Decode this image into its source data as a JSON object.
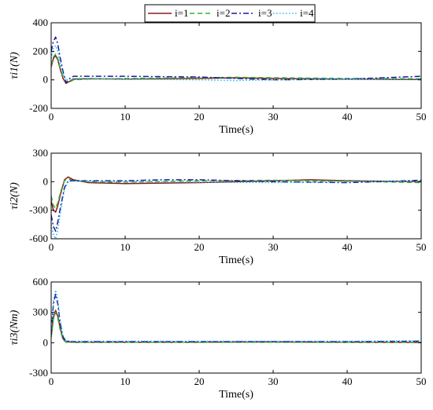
{
  "chart_data": [
    {
      "type": "line",
      "ylabel": "τi1(N)",
      "xlabel": "Time(s)",
      "xlim": [
        0,
        50
      ],
      "ylim": [
        -200,
        400
      ],
      "xticks": [
        0,
        10,
        20,
        30,
        40,
        50
      ],
      "yticks": [
        -200,
        0,
        200,
        400
      ],
      "grid": false,
      "legend": {
        "placement": "top-center",
        "entries": [
          "i=1",
          "i=2",
          "i=3",
          "i=4"
        ]
      },
      "series": [
        {
          "name": "i=1",
          "color": "#8B1A1A",
          "dash": "solid",
          "points": [
            [
              0,
              90
            ],
            [
              0.3,
              150
            ],
            [
              0.6,
              170
            ],
            [
              0.9,
              140
            ],
            [
              1.2,
              80
            ],
            [
              1.6,
              10
            ],
            [
              2.0,
              -25
            ],
            [
              2.5,
              -10
            ],
            [
              3.0,
              5
            ],
            [
              5,
              8
            ],
            [
              10,
              5
            ],
            [
              20,
              10
            ],
            [
              25,
              15
            ],
            [
              30,
              10
            ],
            [
              40,
              5
            ],
            [
              50,
              2
            ]
          ]
        },
        {
          "name": "i=2",
          "color": "#2DB52D",
          "dash": "dashed",
          "points": [
            [
              0,
              100
            ],
            [
              0.3,
              160
            ],
            [
              0.6,
              180
            ],
            [
              0.9,
              150
            ],
            [
              1.2,
              90
            ],
            [
              1.6,
              20
            ],
            [
              2.0,
              -20
            ],
            [
              2.5,
              -15
            ],
            [
              3.0,
              0
            ],
            [
              5,
              5
            ],
            [
              10,
              10
            ],
            [
              20,
              15
            ],
            [
              25,
              18
            ],
            [
              30,
              15
            ],
            [
              40,
              10
            ],
            [
              50,
              8
            ]
          ]
        },
        {
          "name": "i=3",
          "color": "#1A1A9E",
          "dash": "dashdot",
          "points": [
            [
              0,
              200
            ],
            [
              0.3,
              270
            ],
            [
              0.6,
              300
            ],
            [
              0.9,
              250
            ],
            [
              1.2,
              160
            ],
            [
              1.6,
              60
            ],
            [
              2.0,
              -20
            ],
            [
              2.5,
              10
            ],
            [
              3.0,
              25
            ],
            [
              5,
              25
            ],
            [
              10,
              25
            ],
            [
              20,
              20
            ],
            [
              25,
              10
            ],
            [
              30,
              0
            ],
            [
              40,
              5
            ],
            [
              50,
              25
            ]
          ]
        },
        {
          "name": "i=4",
          "color": "#22B6E8",
          "dash": "dotted",
          "points": [
            [
              0,
              150
            ],
            [
              0.3,
              220
            ],
            [
              0.6,
              240
            ],
            [
              0.9,
              200
            ],
            [
              1.2,
              120
            ],
            [
              1.6,
              40
            ],
            [
              2.0,
              0
            ],
            [
              2.5,
              5
            ],
            [
              3.0,
              10
            ],
            [
              5,
              10
            ],
            [
              10,
              5
            ],
            [
              20,
              0
            ],
            [
              25,
              -5
            ],
            [
              30,
              0
            ],
            [
              40,
              5
            ],
            [
              50,
              5
            ]
          ]
        }
      ]
    },
    {
      "type": "line",
      "ylabel": "τi2(N)",
      "xlabel": "Time(s)",
      "xlim": [
        0,
        50
      ],
      "ylim": [
        -600,
        300
      ],
      "xticks": [
        0,
        10,
        20,
        30,
        40,
        50
      ],
      "yticks": [
        -600,
        -300,
        0,
        300
      ],
      "grid": false,
      "series": [
        {
          "name": "i=1",
          "color": "#8B1A1A",
          "dash": "solid",
          "points": [
            [
              0,
              -200
            ],
            [
              0.3,
              -300
            ],
            [
              0.6,
              -320
            ],
            [
              0.9,
              -250
            ],
            [
              1.3,
              -120
            ],
            [
              1.8,
              20
            ],
            [
              2.3,
              50
            ],
            [
              3.0,
              20
            ],
            [
              5,
              -10
            ],
            [
              10,
              -20
            ],
            [
              20,
              -10
            ],
            [
              30,
              10
            ],
            [
              35,
              20
            ],
            [
              40,
              10
            ],
            [
              50,
              0
            ]
          ]
        },
        {
          "name": "i=2",
          "color": "#2DB52D",
          "dash": "dashed",
          "points": [
            [
              0,
              -150
            ],
            [
              0.3,
              -250
            ],
            [
              0.6,
              -280
            ],
            [
              0.9,
              -220
            ],
            [
              1.3,
              -100
            ],
            [
              1.8,
              10
            ],
            [
              2.3,
              30
            ],
            [
              3.0,
              10
            ],
            [
              5,
              0
            ],
            [
              10,
              -5
            ],
            [
              20,
              10
            ],
            [
              30,
              15
            ],
            [
              40,
              5
            ],
            [
              50,
              -10
            ]
          ]
        },
        {
          "name": "i=3",
          "color": "#1A1A9E",
          "dash": "dashdot",
          "points": [
            [
              0,
              -350
            ],
            [
              0.3,
              -470
            ],
            [
              0.6,
              -520
            ],
            [
              0.9,
              -420
            ],
            [
              1.3,
              -250
            ],
            [
              1.8,
              -60
            ],
            [
              2.3,
              10
            ],
            [
              3.0,
              10
            ],
            [
              5,
              10
            ],
            [
              10,
              10
            ],
            [
              15,
              20
            ],
            [
              20,
              20
            ],
            [
              30,
              0
            ],
            [
              40,
              -10
            ],
            [
              50,
              15
            ]
          ]
        },
        {
          "name": "i=4",
          "color": "#22B6E8",
          "dash": "dotted",
          "points": [
            [
              0,
              -450
            ],
            [
              0.3,
              -560
            ],
            [
              0.6,
              -600
            ],
            [
              0.9,
              -500
            ],
            [
              1.3,
              -300
            ],
            [
              1.8,
              -80
            ],
            [
              2.3,
              0
            ],
            [
              3.0,
              5
            ],
            [
              5,
              5
            ],
            [
              10,
              0
            ],
            [
              20,
              -5
            ],
            [
              30,
              -10
            ],
            [
              40,
              0
            ],
            [
              50,
              5
            ]
          ]
        }
      ]
    },
    {
      "type": "line",
      "ylabel": "τi3(Nm)",
      "xlabel": "Time(s)",
      "xlim": [
        0,
        50
      ],
      "ylim": [
        -300,
        600
      ],
      "xticks": [
        0,
        10,
        20,
        30,
        40,
        50
      ],
      "yticks": [
        -300,
        0,
        300,
        600
      ],
      "grid": false,
      "series": [
        {
          "name": "i=1",
          "color": "#8B1A1A",
          "dash": "solid",
          "points": [
            [
              0,
              60
            ],
            [
              0.3,
              250
            ],
            [
              0.6,
              320
            ],
            [
              0.9,
              260
            ],
            [
              1.2,
              150
            ],
            [
              1.6,
              40
            ],
            [
              2.0,
              10
            ],
            [
              3.0,
              5
            ],
            [
              10,
              5
            ],
            [
              20,
              5
            ],
            [
              30,
              8
            ],
            [
              40,
              5
            ],
            [
              50,
              3
            ]
          ]
        },
        {
          "name": "i=2",
          "color": "#2DB52D",
          "dash": "dashed",
          "points": [
            [
              0,
              50
            ],
            [
              0.3,
              230
            ],
            [
              0.6,
              300
            ],
            [
              0.9,
              240
            ],
            [
              1.2,
              130
            ],
            [
              1.6,
              30
            ],
            [
              2.0,
              5
            ],
            [
              3.0,
              5
            ],
            [
              10,
              5
            ],
            [
              20,
              5
            ],
            [
              30,
              5
            ],
            [
              40,
              5
            ],
            [
              50,
              5
            ]
          ]
        },
        {
          "name": "i=3",
          "color": "#1A1A9E",
          "dash": "dashdot",
          "points": [
            [
              0,
              80
            ],
            [
              0.3,
              380
            ],
            [
              0.6,
              480
            ],
            [
              0.9,
              380
            ],
            [
              1.2,
              200
            ],
            [
              1.6,
              60
            ],
            [
              2.0,
              15
            ],
            [
              3.0,
              10
            ],
            [
              10,
              10
            ],
            [
              20,
              10
            ],
            [
              30,
              10
            ],
            [
              40,
              10
            ],
            [
              50,
              15
            ]
          ]
        },
        {
          "name": "i=4",
          "color": "#22B6E8",
          "dash": "dotted",
          "points": [
            [
              0,
              100
            ],
            [
              0.3,
              420
            ],
            [
              0.6,
              520
            ],
            [
              0.9,
              420
            ],
            [
              1.2,
              230
            ],
            [
              1.6,
              70
            ],
            [
              2.0,
              20
            ],
            [
              3.0,
              15
            ],
            [
              10,
              15
            ],
            [
              20,
              15
            ],
            [
              30,
              15
            ],
            [
              40,
              15
            ],
            [
              50,
              20
            ]
          ]
        }
      ]
    }
  ]
}
